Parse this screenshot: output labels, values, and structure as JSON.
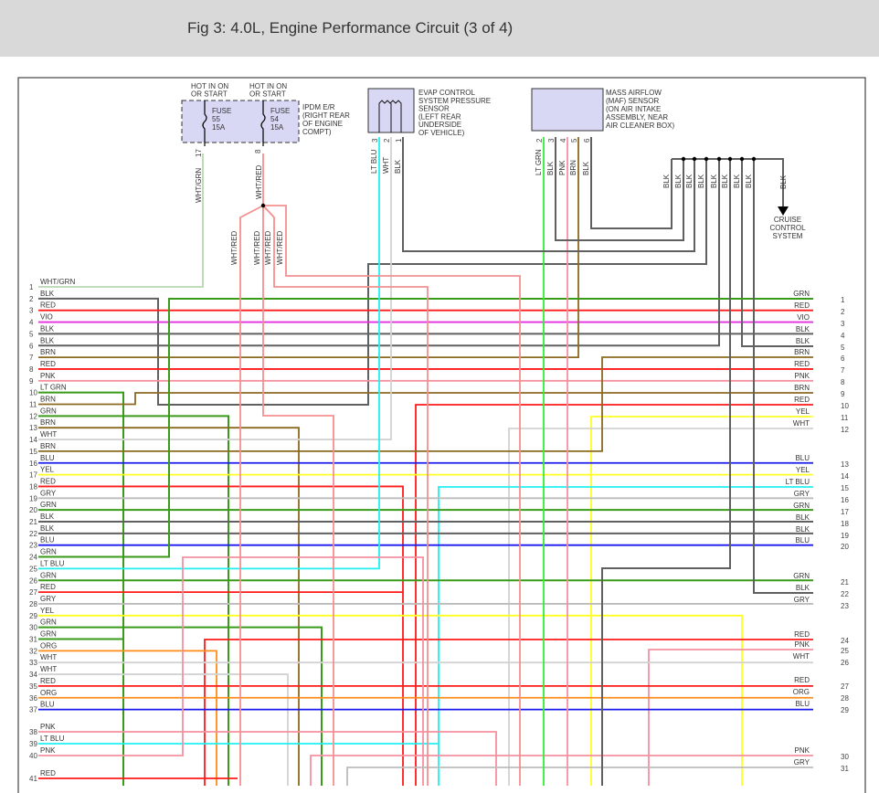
{
  "title": "Fig 3: 4.0L, Engine Performance Circuit (3 of 4)",
  "colors": {
    "GRN": "#3a9a1a",
    "LTGRN": "#33ee33",
    "RED": "#ff1a1a",
    "VIO": "#e030e0",
    "BLK": "#606060",
    "BRN": "#8b6a20",
    "PNK": "#f590a0",
    "WHT": "#d2d2d2",
    "BLU": "#1a1aee",
    "YEL": "#ffff20",
    "GRY": "#bcbcbc",
    "LTBLU": "#20f0f0",
    "ORG": "#ff8c1a",
    "WHTGRN": "#b8d8b0",
    "WHTRED": "#f49090",
    "component_fill": "#d8d8f5",
    "title_bar": "#d9d9d9"
  },
  "ipdm": {
    "hot1": [
      "HOT IN ON",
      "OR START"
    ],
    "hot2": [
      "HOT IN ON",
      "OR START"
    ],
    "fuse1": [
      "FUSE",
      "55",
      "15A"
    ],
    "fuse2": [
      "FUSE",
      "54",
      "15A"
    ],
    "label": [
      "IPDM E/R",
      "(RIGHT REAR",
      "OF ENGINE",
      "COMPT)"
    ],
    "pins": [
      "17",
      "8"
    ],
    "wires": [
      "WHT/GRN",
      "WHT/RED"
    ]
  },
  "splice_wires": [
    "WHT/RED",
    "WHT/RED",
    "WHT/RED",
    "WHT/RED"
  ],
  "evap": {
    "label": [
      "EVAP CONTROL",
      "SYSTEM PRESSURE",
      "SENSOR",
      "(LEFT REAR",
      "UNDERSIDE",
      "OF VEHICLE)"
    ],
    "pins": [
      "3",
      "2",
      "1"
    ],
    "wires": [
      "LT BLU",
      "WHT",
      "BLK"
    ]
  },
  "maf": {
    "label": [
      "MASS AIRFLOW",
      "(MAF) SENSOR",
      "(ON AIR INTAKE",
      "ASSEMBLY, NEAR",
      "AIR CLEANER BOX)"
    ],
    "pins": [
      "2",
      "3",
      "4",
      "5",
      "6"
    ],
    "wires": [
      "LT GRN",
      "BLK",
      "PNK",
      "BRN",
      "BLK"
    ]
  },
  "ground_wires": [
    "BLK",
    "BLK",
    "BLK",
    "BLK",
    "BLK",
    "BLK",
    "BLK",
    "BLK"
  ],
  "cruise": {
    "wire": "BLK",
    "label": [
      "CRUISE",
      "CONTROL",
      "SYSTEM"
    ]
  },
  "left_rows": [
    {
      "n": "1",
      "c": "WHT/GRN"
    },
    {
      "n": "2",
      "c": "BLK"
    },
    {
      "n": "3",
      "c": "RED"
    },
    {
      "n": "4",
      "c": "VIO"
    },
    {
      "n": "5",
      "c": "BLK"
    },
    {
      "n": "6",
      "c": "BLK"
    },
    {
      "n": "7",
      "c": "BRN"
    },
    {
      "n": "8",
      "c": "RED"
    },
    {
      "n": "9",
      "c": "PNK"
    },
    {
      "n": "10",
      "c": "LT GRN"
    },
    {
      "n": "11",
      "c": "BRN"
    },
    {
      "n": "12",
      "c": "GRN"
    },
    {
      "n": "13",
      "c": "BRN"
    },
    {
      "n": "14",
      "c": "WHT"
    },
    {
      "n": "15",
      "c": "BRN"
    },
    {
      "n": "16",
      "c": "BLU"
    },
    {
      "n": "17",
      "c": "YEL"
    },
    {
      "n": "18",
      "c": "RED"
    },
    {
      "n": "19",
      "c": "GRY"
    },
    {
      "n": "20",
      "c": "GRN"
    },
    {
      "n": "21",
      "c": "BLK"
    },
    {
      "n": "22",
      "c": "BLK"
    },
    {
      "n": "23",
      "c": "BLU"
    },
    {
      "n": "24",
      "c": "GRN"
    },
    {
      "n": "25",
      "c": "LT BLU"
    },
    {
      "n": "26",
      "c": "GRN"
    },
    {
      "n": "27",
      "c": "RED"
    },
    {
      "n": "28",
      "c": "GRY"
    },
    {
      "n": "29",
      "c": "YEL"
    },
    {
      "n": "30",
      "c": "GRN"
    },
    {
      "n": "31",
      "c": "GRN"
    },
    {
      "n": "32",
      "c": "ORG"
    },
    {
      "n": "33",
      "c": "WHT"
    },
    {
      "n": "34",
      "c": "WHT"
    },
    {
      "n": "35",
      "c": "RED"
    },
    {
      "n": "36",
      "c": "ORG"
    },
    {
      "n": "37",
      "c": "BLU"
    },
    {
      "n": "38",
      "c": "PNK"
    },
    {
      "n": "39",
      "c": "LT BLU"
    },
    {
      "n": "40",
      "c": "PNK"
    },
    {
      "n": "41",
      "c": "RED"
    }
  ],
  "right_rows": [
    {
      "n": "1",
      "c": "GRN"
    },
    {
      "n": "2",
      "c": "RED"
    },
    {
      "n": "3",
      "c": "VIO"
    },
    {
      "n": "4",
      "c": "BLK"
    },
    {
      "n": "5",
      "c": "BLK"
    },
    {
      "n": "6",
      "c": "BRN"
    },
    {
      "n": "7",
      "c": "RED"
    },
    {
      "n": "8",
      "c": "PNK"
    },
    {
      "n": "9",
      "c": "BRN"
    },
    {
      "n": "10",
      "c": "RED"
    },
    {
      "n": "11",
      "c": "YEL"
    },
    {
      "n": "12",
      "c": "WHT"
    },
    {
      "n": "13",
      "c": "BLU"
    },
    {
      "n": "14",
      "c": "YEL"
    },
    {
      "n": "15",
      "c": "LT BLU"
    },
    {
      "n": "16",
      "c": "GRY"
    },
    {
      "n": "17",
      "c": "GRN"
    },
    {
      "n": "18",
      "c": "BLK"
    },
    {
      "n": "19",
      "c": "BLK"
    },
    {
      "n": "20",
      "c": "BLU"
    },
    {
      "n": "21",
      "c": "GRN"
    },
    {
      "n": "22",
      "c": "BLK"
    },
    {
      "n": "23",
      "c": "GRY"
    },
    {
      "n": "24",
      "c": "RED"
    },
    {
      "n": "25",
      "c": "PNK"
    },
    {
      "n": "26",
      "c": "WHT"
    },
    {
      "n": "27",
      "c": "RED"
    },
    {
      "n": "28",
      "c": "ORG"
    },
    {
      "n": "29",
      "c": "BLU"
    },
    {
      "n": "30",
      "c": "PNK"
    },
    {
      "n": "31",
      "c": "GRY"
    }
  ]
}
